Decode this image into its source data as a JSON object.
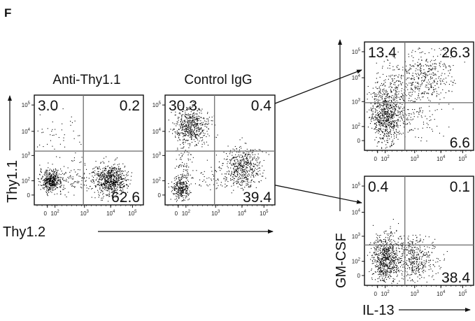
{
  "panel_label": "F",
  "colors": {
    "ink": "#111111",
    "gate": "#777777",
    "dot": "#000000"
  },
  "chart_data": [
    {
      "type": "scatter",
      "id": "anti-thy1-1",
      "title": "Anti-Thy1.1",
      "xlabel": "Thy1.2",
      "ylabel": "Thy1.1",
      "scale": "biexponential",
      "xticks": [
        "0",
        "10^2",
        "10^3",
        "10^4",
        "10^5"
      ],
      "yticks": [
        "0",
        "10^2",
        "10^3",
        "10^4",
        "10^5"
      ],
      "quadrants": {
        "upper_left": "3.0",
        "upper_right": "0.2",
        "lower_right": "62.6"
      }
    },
    {
      "type": "scatter",
      "id": "control-igg",
      "title": "Control IgG",
      "xlabel": "Thy1.2",
      "ylabel": "Thy1.1",
      "scale": "biexponential",
      "xticks": [
        "0",
        "10^2",
        "10^3",
        "10^4",
        "10^5"
      ],
      "yticks": [
        "0",
        "10^2",
        "10^3",
        "10^4",
        "10^5"
      ],
      "quadrants": {
        "upper_left": "30.3",
        "upper_right": "0.4",
        "lower_right": "39.4"
      }
    },
    {
      "type": "scatter",
      "id": "thy1-1-gated",
      "title": "",
      "xlabel": "IL-13",
      "ylabel": "GM-CSF",
      "scale": "biexponential",
      "xticks": [
        "0",
        "10^2",
        "10^3",
        "10^4",
        "10^5"
      ],
      "yticks": [
        "0",
        "10^2",
        "10^3",
        "10^4",
        "10^5"
      ],
      "quadrants": {
        "upper_left": "13.4",
        "upper_right": "26.3",
        "lower_right": "6.6"
      }
    },
    {
      "type": "scatter",
      "id": "thy1-2-gated",
      "title": "",
      "xlabel": "IL-13",
      "ylabel": "GM-CSF",
      "scale": "biexponential",
      "xticks": [
        "0",
        "10^2",
        "10^3",
        "10^4",
        "10^5"
      ],
      "yticks": [
        "0",
        "10^2",
        "10^3",
        "10^4",
        "10^5"
      ],
      "quadrants": {
        "upper_left": "0.4",
        "upper_right": "0.1",
        "lower_right": "38.4"
      }
    }
  ],
  "axis_labels": {
    "left_y": "Thy1.1",
    "left_x": "Thy1.2",
    "right_y": "GM-CSF",
    "right_x": "IL-13"
  }
}
